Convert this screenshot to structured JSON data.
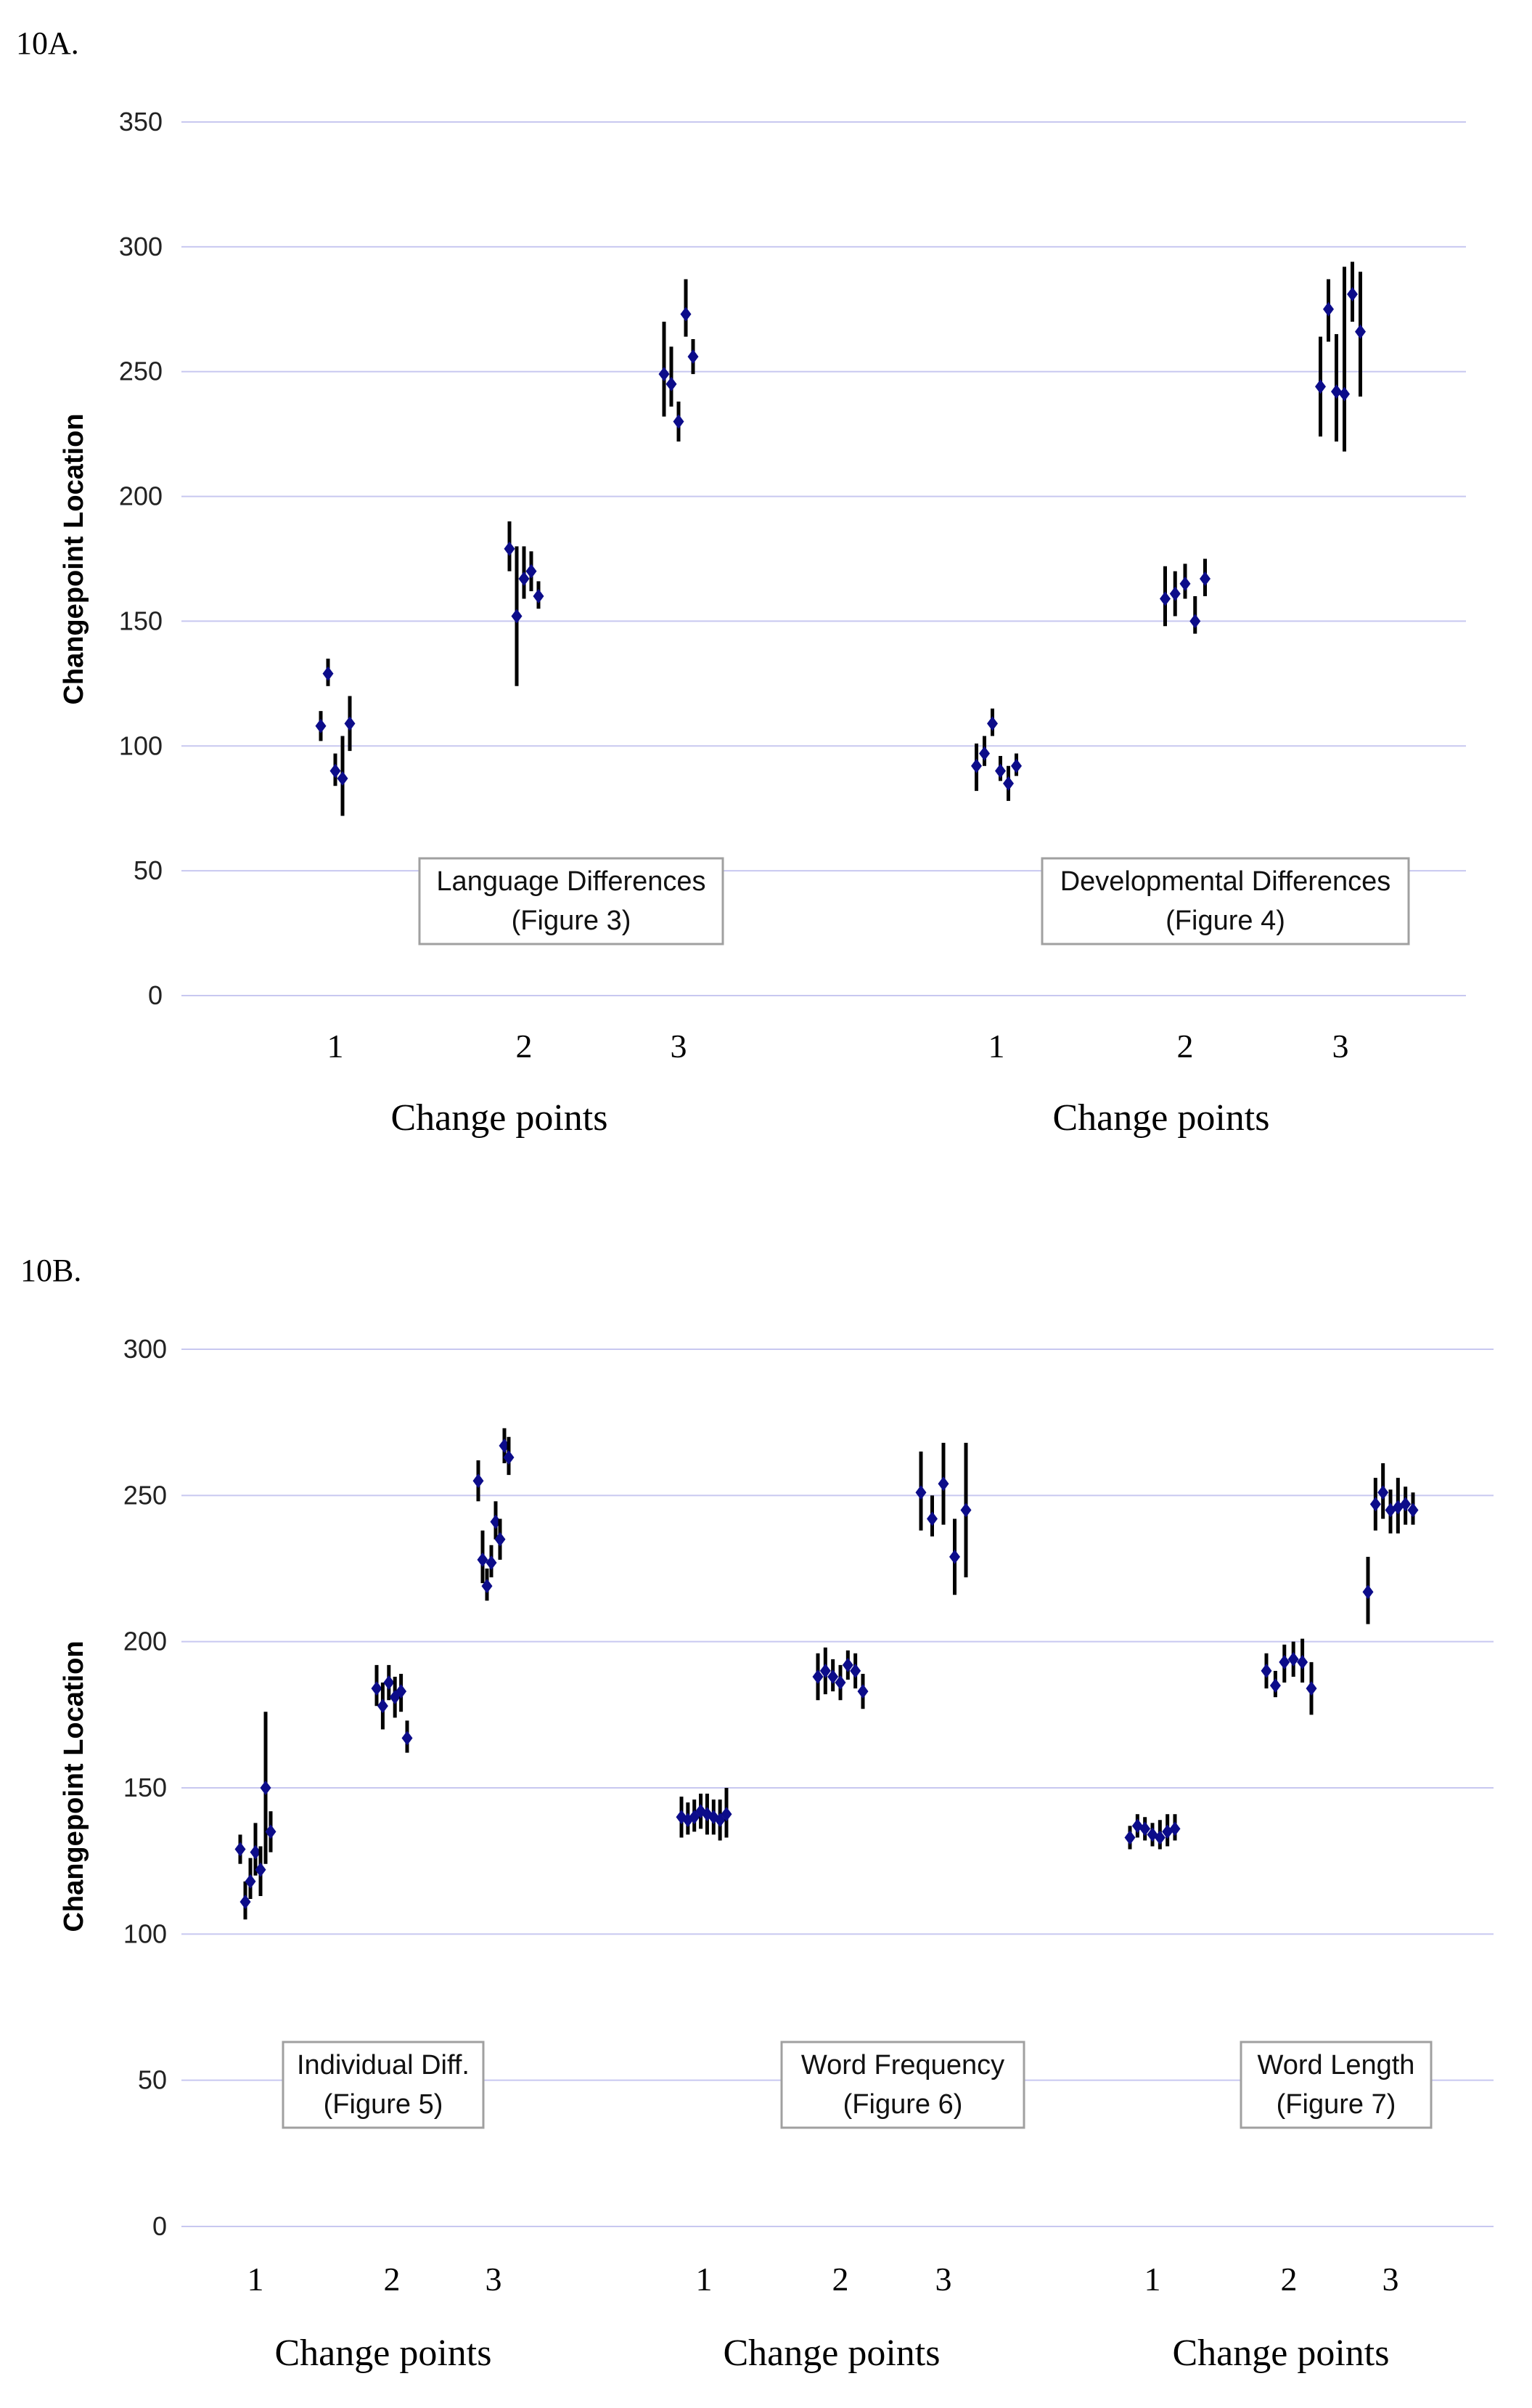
{
  "chart_data": [
    {
      "type": "scatter",
      "panel_label": "10A.",
      "ylabel": "Changepoint Location",
      "ylim": [
        0,
        350
      ],
      "yticks": [
        0,
        50,
        100,
        150,
        200,
        250,
        300,
        350
      ],
      "colors": {
        "marker": "#0c0c8a",
        "errorbar": "#000000",
        "grid": "#c8c8f0"
      },
      "groups": [
        {
          "box": [
            "Language Differences",
            "(Figure 3)"
          ],
          "xlabel": "Change points",
          "xticks": [
            "1",
            "2",
            "3"
          ],
          "points": [
            {
              "cp": 1,
              "y": 108,
              "lo": 102,
              "hi": 114
            },
            {
              "cp": 1,
              "y": 129,
              "lo": 124,
              "hi": 135
            },
            {
              "cp": 1,
              "y": 90,
              "lo": 84,
              "hi": 97
            },
            {
              "cp": 1,
              "y": 87,
              "lo": 72,
              "hi": 104
            },
            {
              "cp": 1,
              "y": 109,
              "lo": 98,
              "hi": 120
            },
            {
              "cp": 2,
              "y": 179,
              "lo": 170,
              "hi": 190
            },
            {
              "cp": 2,
              "y": 152,
              "lo": 124,
              "hi": 180
            },
            {
              "cp": 2,
              "y": 167,
              "lo": 159,
              "hi": 180
            },
            {
              "cp": 2,
              "y": 170,
              "lo": 162,
              "hi": 178
            },
            {
              "cp": 2,
              "y": 160,
              "lo": 155,
              "hi": 166
            },
            {
              "cp": 3,
              "y": 249,
              "lo": 232,
              "hi": 270
            },
            {
              "cp": 3,
              "y": 245,
              "lo": 236,
              "hi": 260
            },
            {
              "cp": 3,
              "y": 230,
              "lo": 222,
              "hi": 238
            },
            {
              "cp": 3,
              "y": 273,
              "lo": 264,
              "hi": 287
            },
            {
              "cp": 3,
              "y": 256,
              "lo": 249,
              "hi": 263
            }
          ]
        },
        {
          "box": [
            "Developmental Differences",
            "(Figure 4)"
          ],
          "xlabel": "Change points",
          "xticks": [
            "1",
            "2",
            "3"
          ],
          "points": [
            {
              "cp": 1,
              "y": 92,
              "lo": 82,
              "hi": 101
            },
            {
              "cp": 1,
              "y": 97,
              "lo": 92,
              "hi": 104
            },
            {
              "cp": 1,
              "y": 109,
              "lo": 104,
              "hi": 115
            },
            {
              "cp": 1,
              "y": 90,
              "lo": 86,
              "hi": 96
            },
            {
              "cp": 1,
              "y": 85,
              "lo": 78,
              "hi": 92
            },
            {
              "cp": 1,
              "y": 92,
              "lo": 88,
              "hi": 97
            },
            {
              "cp": 2,
              "y": 159,
              "lo": 148,
              "hi": 172
            },
            {
              "cp": 2,
              "y": 161,
              "lo": 152,
              "hi": 170
            },
            {
              "cp": 2,
              "y": 165,
              "lo": 159,
              "hi": 173
            },
            {
              "cp": 2,
              "y": 150,
              "lo": 145,
              "hi": 160
            },
            {
              "cp": 2,
              "y": 167,
              "lo": 160,
              "hi": 175
            },
            {
              "cp": 3,
              "y": 244,
              "lo": 224,
              "hi": 264
            },
            {
              "cp": 3,
              "y": 275,
              "lo": 262,
              "hi": 287
            },
            {
              "cp": 3,
              "y": 242,
              "lo": 222,
              "hi": 265
            },
            {
              "cp": 3,
              "y": 241,
              "lo": 218,
              "hi": 292
            },
            {
              "cp": 3,
              "y": 281,
              "lo": 270,
              "hi": 294
            },
            {
              "cp": 3,
              "y": 266,
              "lo": 240,
              "hi": 290
            }
          ]
        }
      ]
    },
    {
      "type": "scatter",
      "panel_label": "10B.",
      "ylabel": "Changepoint Location",
      "ylim": [
        0,
        300
      ],
      "yticks": [
        0,
        50,
        100,
        150,
        200,
        250,
        300
      ],
      "colors": {
        "marker": "#0c0c8a",
        "errorbar": "#000000",
        "grid": "#c8c8f0"
      },
      "groups": [
        {
          "box": [
            "Individual Diff.",
            "(Figure 5)"
          ],
          "xlabel": "Change points",
          "xticks": [
            "1",
            "2",
            "3"
          ],
          "points": [
            {
              "cp": 1,
              "y": 129,
              "lo": 124,
              "hi": 134
            },
            {
              "cp": 1,
              "y": 111,
              "lo": 105,
              "hi": 118
            },
            {
              "cp": 1,
              "y": 118,
              "lo": 112,
              "hi": 126
            },
            {
              "cp": 1,
              "y": 128,
              "lo": 120,
              "hi": 138
            },
            {
              "cp": 1,
              "y": 122,
              "lo": 113,
              "hi": 130
            },
            {
              "cp": 1,
              "y": 150,
              "lo": 124,
              "hi": 176
            },
            {
              "cp": 1,
              "y": 135,
              "lo": 128,
              "hi": 142
            },
            {
              "cp": 2,
              "y": 184,
              "lo": 178,
              "hi": 192
            },
            {
              "cp": 2,
              "y": 178,
              "lo": 170,
              "hi": 186
            },
            {
              "cp": 2,
              "y": 186,
              "lo": 180,
              "hi": 192
            },
            {
              "cp": 2,
              "y": 181,
              "lo": 174,
              "hi": 188
            },
            {
              "cp": 2,
              "y": 183,
              "lo": 176,
              "hi": 189
            },
            {
              "cp": 2,
              "y": 167,
              "lo": 162,
              "hi": 173
            },
            {
              "cp": 3,
              "y": 255,
              "lo": 248,
              "hi": 262
            },
            {
              "cp": 3,
              "y": 228,
              "lo": 220,
              "hi": 238
            },
            {
              "cp": 3,
              "y": 219,
              "lo": 214,
              "hi": 225
            },
            {
              "cp": 3,
              "y": 227,
              "lo": 222,
              "hi": 233
            },
            {
              "cp": 3,
              "y": 241,
              "lo": 235,
              "hi": 248
            },
            {
              "cp": 3,
              "y": 235,
              "lo": 228,
              "hi": 242
            },
            {
              "cp": 3,
              "y": 267,
              "lo": 261,
              "hi": 273
            },
            {
              "cp": 3,
              "y": 263,
              "lo": 257,
              "hi": 270
            }
          ]
        },
        {
          "box": [
            "Word Frequency",
            "(Figure 6)"
          ],
          "xlabel": "Change points",
          "xticks": [
            "1",
            "2",
            "3"
          ],
          "points": [
            {
              "cp": 1,
              "y": 140,
              "lo": 133,
              "hi": 147
            },
            {
              "cp": 1,
              "y": 139,
              "lo": 134,
              "hi": 145
            },
            {
              "cp": 1,
              "y": 140,
              "lo": 135,
              "hi": 146
            },
            {
              "cp": 1,
              "y": 142,
              "lo": 136,
              "hi": 148
            },
            {
              "cp": 1,
              "y": 141,
              "lo": 134,
              "hi": 148
            },
            {
              "cp": 1,
              "y": 140,
              "lo": 134,
              "hi": 146
            },
            {
              "cp": 1,
              "y": 139,
              "lo": 132,
              "hi": 146
            },
            {
              "cp": 1,
              "y": 141,
              "lo": 133,
              "hi": 150
            },
            {
              "cp": 2,
              "y": 188,
              "lo": 180,
              "hi": 196
            },
            {
              "cp": 2,
              "y": 190,
              "lo": 182,
              "hi": 198
            },
            {
              "cp": 2,
              "y": 188,
              "lo": 183,
              "hi": 194
            },
            {
              "cp": 2,
              "y": 186,
              "lo": 180,
              "hi": 192
            },
            {
              "cp": 2,
              "y": 192,
              "lo": 187,
              "hi": 197
            },
            {
              "cp": 2,
              "y": 190,
              "lo": 184,
              "hi": 196
            },
            {
              "cp": 2,
              "y": 183,
              "lo": 177,
              "hi": 189
            },
            {
              "cp": 3,
              "y": 251,
              "lo": 238,
              "hi": 265
            },
            {
              "cp": 3,
              "y": 242,
              "lo": 236,
              "hi": 250
            },
            {
              "cp": 3,
              "y": 254,
              "lo": 240,
              "hi": 268
            },
            {
              "cp": 3,
              "y": 229,
              "lo": 216,
              "hi": 242
            },
            {
              "cp": 3,
              "y": 245,
              "lo": 222,
              "hi": 268
            }
          ]
        },
        {
          "box": [
            "Word Length",
            "(Figure 7)"
          ],
          "xlabel": "Change points",
          "xticks": [
            "1",
            "2",
            "3"
          ],
          "points": [
            {
              "cp": 1,
              "y": 133,
              "lo": 129,
              "hi": 137
            },
            {
              "cp": 1,
              "y": 137,
              "lo": 133,
              "hi": 141
            },
            {
              "cp": 1,
              "y": 136,
              "lo": 132,
              "hi": 140
            },
            {
              "cp": 1,
              "y": 134,
              "lo": 130,
              "hi": 138
            },
            {
              "cp": 1,
              "y": 133,
              "lo": 129,
              "hi": 139
            },
            {
              "cp": 1,
              "y": 135,
              "lo": 130,
              "hi": 141
            },
            {
              "cp": 1,
              "y": 136,
              "lo": 132,
              "hi": 141
            },
            {
              "cp": 2,
              "y": 190,
              "lo": 184,
              "hi": 196
            },
            {
              "cp": 2,
              "y": 185,
              "lo": 181,
              "hi": 190
            },
            {
              "cp": 2,
              "y": 193,
              "lo": 186,
              "hi": 199
            },
            {
              "cp": 2,
              "y": 194,
              "lo": 188,
              "hi": 200
            },
            {
              "cp": 2,
              "y": 193,
              "lo": 186,
              "hi": 201
            },
            {
              "cp": 2,
              "y": 184,
              "lo": 175,
              "hi": 193
            },
            {
              "cp": 3,
              "y": 217,
              "lo": 206,
              "hi": 229
            },
            {
              "cp": 3,
              "y": 247,
              "lo": 238,
              "hi": 256
            },
            {
              "cp": 3,
              "y": 251,
              "lo": 242,
              "hi": 261
            },
            {
              "cp": 3,
              "y": 245,
              "lo": 237,
              "hi": 252
            },
            {
              "cp": 3,
              "y": 246,
              "lo": 237,
              "hi": 256
            },
            {
              "cp": 3,
              "y": 247,
              "lo": 240,
              "hi": 253
            },
            {
              "cp": 3,
              "y": 245,
              "lo": 240,
              "hi": 251
            }
          ]
        }
      ]
    }
  ]
}
